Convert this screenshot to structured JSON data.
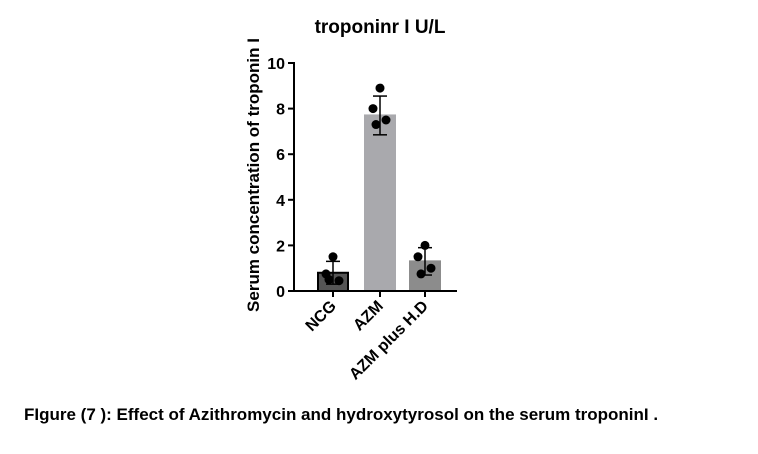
{
  "caption": "FIgure (7 ): Effect of Azithromycin and hydroxytyrosol on the serum troponinI  .",
  "chart_data": {
    "type": "bar",
    "title": "troponinr I U/L",
    "xlabel": "",
    "ylabel": "Serum concentration of troponin I",
    "ylim": [
      0,
      10
    ],
    "yticks": [
      0,
      2,
      4,
      6,
      8,
      10
    ],
    "categories": [
      "NCG",
      "AZM",
      "AZM plus H.D"
    ],
    "values": [
      0.8,
      7.7,
      1.3
    ],
    "error": [
      0.5,
      0.85,
      0.6
    ],
    "points": [
      [
        1.5,
        0.75,
        0.45,
        0.5
      ],
      [
        8.9,
        8.0,
        7.5,
        7.3
      ],
      [
        2.0,
        1.5,
        1.0,
        0.75
      ]
    ],
    "bar_colors": [
      "#555555",
      "#a9a9ad",
      "#8c8c8c"
    ],
    "bar_outline": [
      "#000000",
      "#a9a9ad",
      "#8c8c8c"
    ],
    "grid": false
  }
}
